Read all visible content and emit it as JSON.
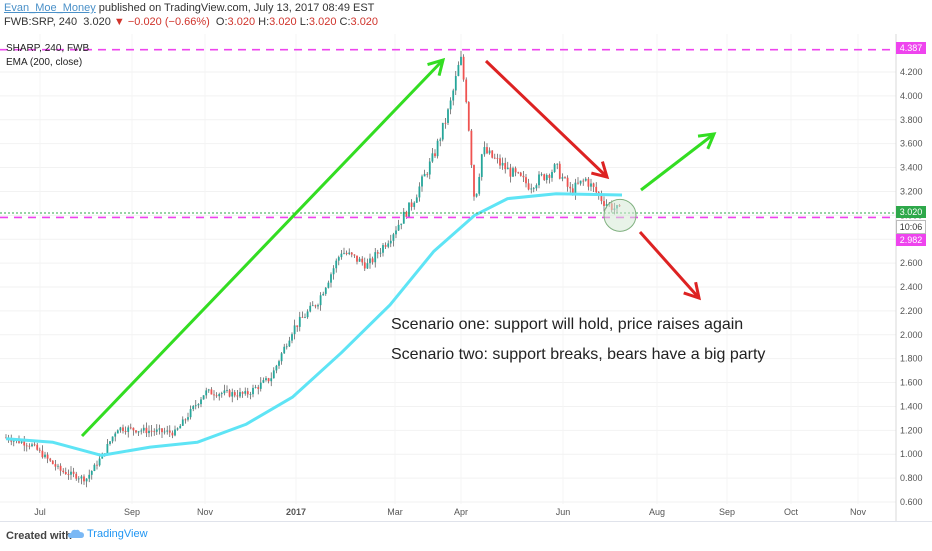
{
  "header": {
    "author": "Evan_Moe_Money",
    "published_text": "published on TradingView.com, July 13, 2017 08:49 EST",
    "symbol": "FWB:SRP, 240",
    "last": "3.020",
    "change": "−0.020 (−0.66%)",
    "ohlc": [
      {
        "label": "O:",
        "value": "3.020"
      },
      {
        "label": "H:",
        "value": "3.020"
      },
      {
        "label": "L:",
        "value": "3.020"
      },
      {
        "label": "C:",
        "value": "3.020"
      }
    ]
  },
  "legend": {
    "series": "SHARP, 240, FWB",
    "indicator": "EMA (200, close)"
  },
  "annotations": {
    "scenario_one": "Scenario one: support will hold, price raises again",
    "scenario_two": "Scenario two: support breaks, bears have a big party"
  },
  "price_tags": {
    "top": "4.387",
    "last": "3.020",
    "countdown": "10:06",
    "bottom": "2.982"
  },
  "footer": {
    "created_with": "Created with",
    "brand": "TradingView"
  },
  "colors": {
    "up": "#26a69a",
    "down": "#ef5350",
    "ema": "#5ee4f5",
    "dash": "#ee44ee",
    "arrow_up": "#33dd22",
    "arrow_down": "#dd2222",
    "last_price": "#2ea84a",
    "support_circle": "#7fb07f"
  },
  "chart_data": {
    "type": "candlestick",
    "symbol": "SHARP",
    "timeframe": "240",
    "x_ticks": [
      "Jul",
      "Sep",
      "Nov",
      "2017",
      "Mar",
      "Apr",
      "Jun",
      "Aug",
      "Sep",
      "Oct",
      "Nov"
    ],
    "y_ticks": [
      "4.200",
      "4.000",
      "3.800",
      "3.600",
      "3.400",
      "3.200",
      "3.000",
      "2.800",
      "2.600",
      "2.400",
      "2.200",
      "2.000",
      "1.800",
      "1.600",
      "1.400",
      "1.200",
      "1.000",
      "0.800",
      "0.600"
    ],
    "ylim": [
      0.6,
      4.4
    ],
    "horizontal_levels": [
      4.387,
      2.982
    ],
    "last_price": 3.02,
    "price_path": [
      {
        "date": "2016-06-15",
        "value": 1.14
      },
      {
        "date": "2016-07-01",
        "value": 1.08
      },
      {
        "date": "2016-07-20",
        "value": 0.86
      },
      {
        "date": "2016-08-05",
        "value": 0.79
      },
      {
        "date": "2016-08-15",
        "value": 0.98
      },
      {
        "date": "2016-08-25",
        "value": 1.22
      },
      {
        "date": "2016-09-10",
        "value": 1.2
      },
      {
        "date": "2016-10-01",
        "value": 1.18
      },
      {
        "date": "2016-10-20",
        "value": 1.52
      },
      {
        "date": "2016-11-15",
        "value": 1.5
      },
      {
        "date": "2016-12-01",
        "value": 1.64
      },
      {
        "date": "2016-12-15",
        "value": 2.05
      },
      {
        "date": "2016-12-31",
        "value": 2.28
      },
      {
        "date": "2017-01-15",
        "value": 2.7
      },
      {
        "date": "2017-02-01",
        "value": 2.58
      },
      {
        "date": "2017-02-15",
        "value": 2.82
      },
      {
        "date": "2017-03-01",
        "value": 3.1
      },
      {
        "date": "2017-03-15",
        "value": 3.5
      },
      {
        "date": "2017-03-25",
        "value": 3.9
      },
      {
        "date": "2017-04-01",
        "value": 4.32
      },
      {
        "date": "2017-04-05",
        "value": 3.95
      },
      {
        "date": "2017-04-10",
        "value": 3.1
      },
      {
        "date": "2017-04-15",
        "value": 3.55
      },
      {
        "date": "2017-05-01",
        "value": 3.38
      },
      {
        "date": "2017-05-15",
        "value": 3.25
      },
      {
        "date": "2017-06-01",
        "value": 3.4
      },
      {
        "date": "2017-06-10",
        "value": 3.2
      },
      {
        "date": "2017-06-20",
        "value": 3.3
      },
      {
        "date": "2017-07-01",
        "value": 3.12
      },
      {
        "date": "2017-07-13",
        "value": 3.02
      }
    ],
    "ema_200": [
      {
        "date": "2016-06-15",
        "value": 1.13
      },
      {
        "date": "2016-07-15",
        "value": 1.1
      },
      {
        "date": "2016-08-15",
        "value": 0.99
      },
      {
        "date": "2016-09-15",
        "value": 1.06
      },
      {
        "date": "2016-10-15",
        "value": 1.1
      },
      {
        "date": "2016-11-15",
        "value": 1.25
      },
      {
        "date": "2016-12-15",
        "value": 1.48
      },
      {
        "date": "2017-01-15",
        "value": 1.85
      },
      {
        "date": "2017-02-15",
        "value": 2.25
      },
      {
        "date": "2017-03-15",
        "value": 2.7
      },
      {
        "date": "2017-04-10",
        "value": 3.0
      },
      {
        "date": "2017-05-01",
        "value": 3.14
      },
      {
        "date": "2017-06-01",
        "value": 3.18
      },
      {
        "date": "2017-07-13",
        "value": 3.17
      }
    ]
  }
}
